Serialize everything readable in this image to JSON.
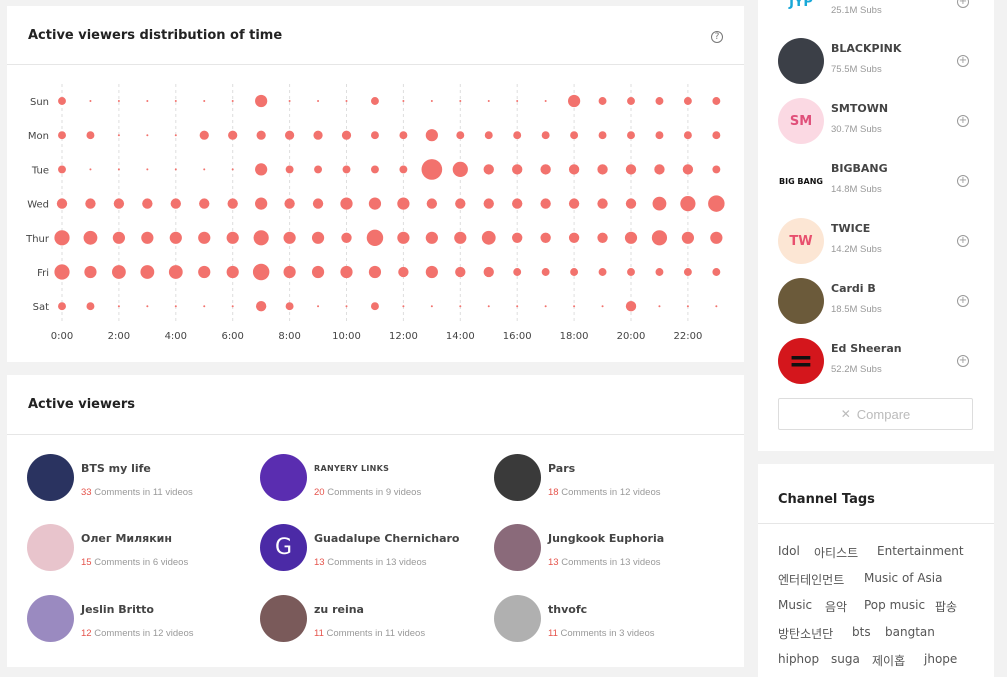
{
  "distribution": {
    "title": "Active viewers distribution of time",
    "help_icon": "question-circle-icon"
  },
  "chart_data": {
    "type": "scatter",
    "title": "Active viewers distribution of time",
    "days": [
      "Sun",
      "Mon",
      "Tue",
      "Wed",
      "Thur",
      "Fri",
      "Sat"
    ],
    "hours": [
      0,
      1,
      2,
      3,
      4,
      5,
      6,
      7,
      8,
      9,
      10,
      11,
      12,
      13,
      14,
      15,
      16,
      17,
      18,
      19,
      20,
      21,
      22,
      23
    ],
    "x_tick_labels": [
      "0:00",
      "2:00",
      "4:00",
      "6:00",
      "8:00",
      "10:00",
      "12:00",
      "14:00",
      "16:00",
      "18:00",
      "20:00",
      "22:00"
    ],
    "color": "#f2726d",
    "grid": "vertical-dashed",
    "values": [
      [
        1,
        0.5,
        0.5,
        0.5,
        0.5,
        0.5,
        0.5,
        3,
        0.5,
        0.5,
        0.5,
        1,
        0.5,
        0.5,
        0.5,
        0.5,
        0.5,
        0.5,
        3,
        1,
        1,
        1,
        1,
        1
      ],
      [
        1,
        1,
        0.5,
        0.5,
        0.5,
        1.5,
        1.5,
        1.5,
        1.5,
        1.5,
        1.5,
        1,
        1,
        3,
        1,
        1,
        1,
        1,
        1,
        1,
        1,
        1,
        1,
        1
      ],
      [
        1,
        0.5,
        0.5,
        0.5,
        0.5,
        0.5,
        0.5,
        3,
        1,
        1,
        1,
        1,
        1,
        10,
        5,
        2,
        2,
        2,
        2,
        2,
        2,
        2,
        2,
        1
      ],
      [
        2,
        2,
        2,
        2,
        2,
        2,
        2,
        3,
        2,
        2,
        3,
        3,
        3,
        2,
        2,
        2,
        2,
        2,
        2,
        2,
        2,
        4,
        5,
        6
      ],
      [
        5,
        4,
        3,
        3,
        3,
        3,
        3,
        5,
        3,
        3,
        2,
        6,
        3,
        3,
        3,
        4,
        2,
        2,
        2,
        2,
        3,
        5,
        3,
        3
      ],
      [
        5,
        3,
        4,
        4,
        4,
        3,
        3,
        6,
        3,
        3,
        3,
        3,
        2,
        3,
        2,
        2,
        1,
        1,
        1,
        1,
        1,
        1,
        1,
        1
      ],
      [
        1,
        1,
        0.5,
        0.5,
        0.5,
        0.5,
        0.5,
        2,
        1,
        0.5,
        0.5,
        1,
        0.5,
        0.5,
        0.5,
        0.5,
        0.5,
        0.5,
        0.5,
        0.5,
        2,
        0.5,
        0.5,
        0.5
      ]
    ]
  },
  "viewers": {
    "title": "Active viewers",
    "items": [
      {
        "name": "BTS my life",
        "count": "33",
        "stat": " Comments in 11 videos",
        "avatar_color": "#2a3360"
      },
      {
        "name": "RANYERY LINKS",
        "count": "20",
        "stat": " Comments in 9 videos",
        "avatar_color": "#5a2db0"
      },
      {
        "name": "Pars",
        "count": "18",
        "stat": " Comments in 12 videos",
        "avatar_color": "#3a3a3a"
      },
      {
        "name": "Олег Милякин",
        "count": "15",
        "stat": " Comments in 6 videos",
        "avatar_color": "#e8c4cc"
      },
      {
        "name": "Guadalupe Chernicharo",
        "count": "13",
        "stat": " Comments in 13 videos",
        "avatar_color": "#4b2aa6",
        "initial": "G"
      },
      {
        "name": "Jungkook Euphoria",
        "count": "13",
        "stat": " Comments in 13 videos",
        "avatar_color": "#8a6a7a"
      },
      {
        "name": "Jeslin Britto",
        "count": "12",
        "stat": " Comments in 12 videos",
        "avatar_color": "#9a8ac0"
      },
      {
        "name": "zu reina",
        "count": "11",
        "stat": " Comments in 11 videos",
        "avatar_color": "#7a5a5a"
      },
      {
        "name": "thvofc",
        "count": "11",
        "stat": " Comments in 3 videos",
        "avatar_color": "#b0b0b0"
      }
    ]
  },
  "channels": {
    "items": [
      {
        "name": "",
        "subs": "25.1M Subs",
        "logo_text": "JYP",
        "logo_bg": "#ffffff",
        "logo_color": "#19a8d8"
      },
      {
        "name": "BLACKPINK",
        "subs": "75.5M Subs",
        "logo_text": "",
        "logo_bg": "#3b3f47",
        "logo_color": "#ffffff"
      },
      {
        "name": "SMTOWN",
        "subs": "30.7M Subs",
        "logo_text": "SM",
        "logo_bg": "#fbd9e3",
        "logo_color": "#e0507a"
      },
      {
        "name": "BIGBANG",
        "subs": "14.8M Subs",
        "logo_text": "BIG BANG",
        "logo_bg": "#ffffff",
        "logo_color": "#111111"
      },
      {
        "name": "TWICE",
        "subs": "14.2M Subs",
        "logo_text": "TW",
        "logo_bg": "#fce6d4",
        "logo_color": "#e8506e"
      },
      {
        "name": "Cardi B",
        "subs": "18.5M Subs",
        "logo_text": "",
        "logo_bg": "#6b5a3a",
        "logo_color": "#ffffff"
      },
      {
        "name": "Ed Sheeran",
        "subs": "52.2M Subs",
        "logo_text": "=",
        "logo_bg": "#d4161c",
        "logo_color": "#111111"
      }
    ],
    "compare_label": "Compare",
    "compare_icon": "compare-icon",
    "add_icon": "plus-circle-icon"
  },
  "tags": {
    "title": "Channel Tags",
    "items": [
      "Idol",
      "아티스트",
      "Entertainment",
      "엔터테인먼트",
      "Music of Asia",
      "Music",
      "음악",
      "Pop music",
      "팝송",
      "방탄소년단",
      "bts",
      "bangtan",
      "hiphop",
      "suga",
      "제이홉",
      "jhope"
    ]
  }
}
